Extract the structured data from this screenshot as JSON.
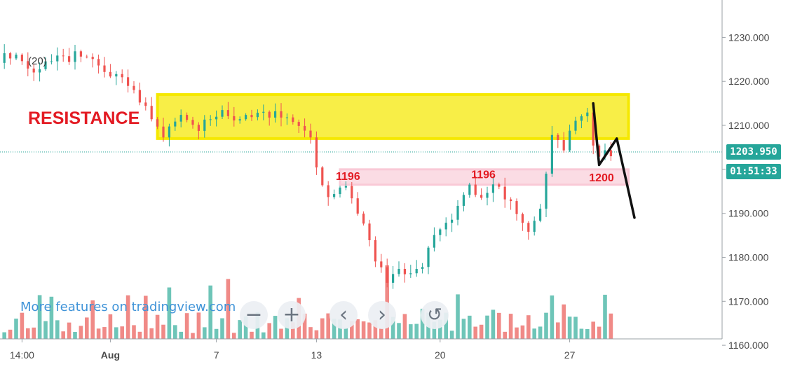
{
  "chart_data": {
    "type": "candlestick",
    "symbol_label": "(20)",
    "y_axis": {
      "ticks": [
        "1230.000",
        "1220.000",
        "1210.000",
        "1200.000",
        "1190.000",
        "1180.000",
        "1170.000",
        "1160.000"
      ],
      "tick_values": [
        1230,
        1220,
        1210,
        1200,
        1190,
        1180,
        1170,
        1160
      ],
      "range": [
        1155.4,
        1238.5
      ],
      "position": "right"
    },
    "x_axis": {
      "ticks": [
        {
          "label": "14:00",
          "index": 3,
          "bold": false
        },
        {
          "label": "Aug",
          "index": 18,
          "bold": true
        },
        {
          "label": "7",
          "index": 36,
          "bold": false
        },
        {
          "label": "13",
          "index": 53,
          "bold": false
        },
        {
          "label": "20",
          "index": 74,
          "bold": false
        },
        {
          "label": "27",
          "index": 96,
          "bold": false
        }
      ],
      "bar_count": 104
    },
    "last_price": "1203.950",
    "last_price_value": 1203.95,
    "countdown": "01:51:33",
    "price_anchors": [
      [
        0,
        1225
      ],
      [
        3,
        1226
      ],
      [
        6,
        1223
      ],
      [
        10,
        1225
      ],
      [
        14,
        1226
      ],
      [
        17,
        1224
      ],
      [
        21,
        1220
      ],
      [
        25,
        1214
      ],
      [
        28,
        1207
      ],
      [
        31,
        1213
      ],
      [
        34,
        1209
      ],
      [
        37,
        1213
      ],
      [
        40,
        1212
      ],
      [
        44,
        1213
      ],
      [
        48,
        1212
      ],
      [
        50,
        1210
      ],
      [
        53,
        1208
      ],
      [
        54,
        1200
      ],
      [
        56,
        1194
      ],
      [
        59,
        1196
      ],
      [
        62,
        1188
      ],
      [
        64,
        1180
      ],
      [
        66,
        1174
      ],
      [
        68,
        1178
      ],
      [
        70,
        1176
      ],
      [
        72,
        1178
      ],
      [
        74,
        1185
      ],
      [
        76,
        1187
      ],
      [
        78,
        1191
      ],
      [
        80,
        1196
      ],
      [
        82,
        1193
      ],
      [
        84,
        1196
      ],
      [
        86,
        1194
      ],
      [
        88,
        1190
      ],
      [
        90,
        1186
      ],
      [
        92,
        1190
      ],
      [
        93,
        1198
      ],
      [
        94,
        1207
      ],
      [
        96,
        1205
      ],
      [
        98,
        1211
      ],
      [
        100,
        1212
      ],
      [
        101,
        1206
      ],
      [
        102,
        1203
      ],
      [
        104,
        1204
      ]
    ],
    "annotations": {
      "resistance_zone": {
        "label": "RESISTANCE",
        "price_low": 1207,
        "price_high": 1217,
        "index_from": 26,
        "index_to": 106,
        "color": "#f5e800"
      },
      "support_zone": {
        "label": "",
        "price_low": 1196.5,
        "price_high": 1200,
        "index_from": 57,
        "index_to": 106,
        "color": "#f9c9d6"
      },
      "level_labels": [
        {
          "text": "1196",
          "index": 57,
          "price": 1197.6
        },
        {
          "text": "1196",
          "index": 80,
          "price": 1198.0
        },
        {
          "text": "1200",
          "index": 100,
          "price": 1197.3
        }
      ],
      "projection_path_prices": [
        {
          "index": 100,
          "price": 1215
        },
        {
          "index": 101,
          "price": 1201
        },
        {
          "index": 104,
          "price": 1207
        },
        {
          "index": 107,
          "price": 1189
        }
      ]
    },
    "colors": {
      "up": "#26a69a",
      "down": "#ef5350",
      "volume_up": "#6ec5b8",
      "volume_down": "#f08a87"
    },
    "grid": false
  },
  "toolbar": {
    "promo_text": "More features on tradingview.com",
    "zoom_out": "−",
    "zoom_in": "+",
    "scroll_left": "‹",
    "scroll_right": "›",
    "reset": "↺"
  }
}
